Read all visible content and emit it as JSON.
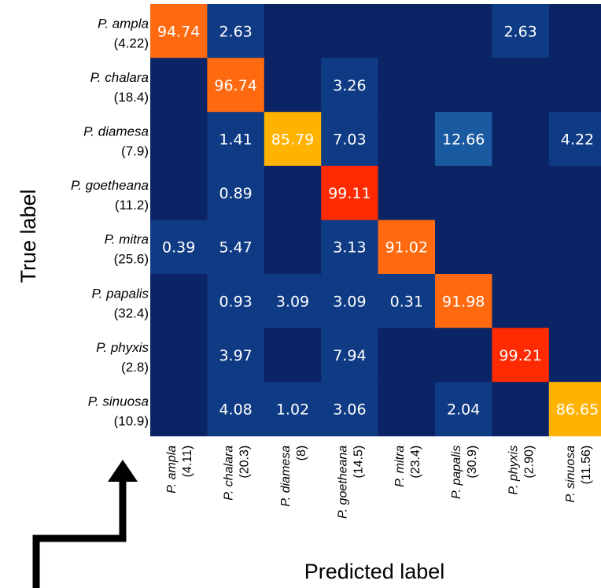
{
  "chart_data": {
    "type": "heatmap",
    "ylabel": "True label",
    "xlabel": "Predicted label",
    "rows": [
      {
        "name": "P. ampla",
        "count": "(4.22)"
      },
      {
        "name": "P. chalara",
        "count": "(18.4)"
      },
      {
        "name": "P. diamesa",
        "count": "(7.9)"
      },
      {
        "name": "P. goetheana",
        "count": "(11.2)"
      },
      {
        "name": "P. mitra",
        "count": "(25.6)"
      },
      {
        "name": "P. papalis",
        "count": "(32.4)"
      },
      {
        "name": "P. phyxis",
        "count": "(2.8)"
      },
      {
        "name": "P. sinuosa",
        "count": "(10.9)"
      }
    ],
    "columns": [
      {
        "name": "P. ampla",
        "count": "(4.11)"
      },
      {
        "name": "P. chalara",
        "count": "(20.3)"
      },
      {
        "name": "P. diamesa",
        "count": "(8)"
      },
      {
        "name": "P. goetheana",
        "count": "(14.5)"
      },
      {
        "name": "P. mitra",
        "count": "(23.4)"
      },
      {
        "name": "P. papalis",
        "count": "(30.9)"
      },
      {
        "name": "P. phyxis",
        "count": "(2.90)"
      },
      {
        "name": "P. sinuosa",
        "count": "(11.56)"
      }
    ],
    "values": [
      [
        "94.74",
        "2.63",
        "",
        "",
        "",
        "",
        "2.63",
        ""
      ],
      [
        "",
        "96.74",
        "",
        "3.26",
        "",
        "",
        "",
        ""
      ],
      [
        "",
        "1.41",
        "85.79",
        "7.03",
        "",
        "12.66",
        "",
        "4.22"
      ],
      [
        "",
        "0.89",
        "",
        "99.11",
        "",
        "",
        "",
        ""
      ],
      [
        "0.39",
        "5.47",
        "",
        "3.13",
        "91.02",
        "",
        "",
        ""
      ],
      [
        "",
        "0.93",
        "3.09",
        "3.09",
        "0.31",
        "91.98",
        "",
        ""
      ],
      [
        "",
        "3.97",
        "",
        "7.94",
        "",
        "",
        "99.21",
        ""
      ],
      [
        "",
        "4.08",
        "1.02",
        "3.06",
        "",
        "2.04",
        "",
        "86.65"
      ]
    ],
    "colors": {
      "background": "#0a2466",
      "low": "#0f3b84",
      "mid": "#1a5aa0",
      "high_orange": "#ff6a10",
      "high_amber": "#ffb300",
      "high_red": "#ff2a00",
      "text": "#ffffff"
    }
  }
}
